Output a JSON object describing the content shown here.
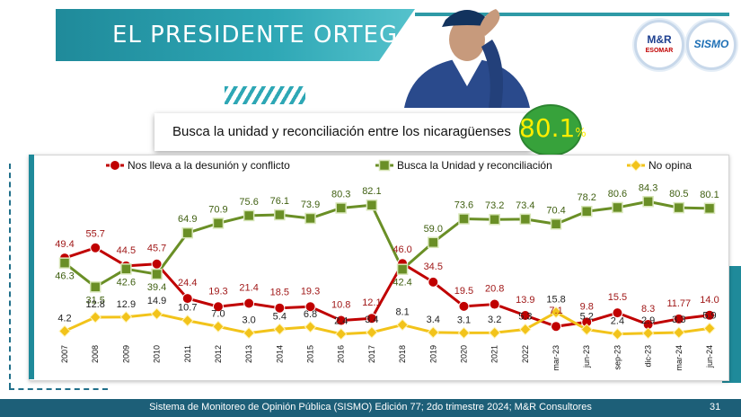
{
  "slide": {
    "title": "EL PRESIDENTE ORTEGA…",
    "subtitle": "Busca la unidad y reconciliación entre los nicaragüenses",
    "highlight_value": "80.1",
    "highlight_unit": "%",
    "footer": "Sistema de Monitoreo de Opinión Pública (SISMO) Edición 77; 2do trimestre 2024; M&R Consultores",
    "page_number": "31",
    "logo_left": {
      "line1": "M&R",
      "line2": "ESOMAR"
    },
    "logo_right": {
      "line1": "SISMO"
    }
  },
  "colors": {
    "teal": "#2ea7b5",
    "red": "#c00000",
    "green": "#6a8f26",
    "yellow": "#f2c31a"
  },
  "chart_data": {
    "type": "line",
    "categories": [
      "2007",
      "2008",
      "2009",
      "2010",
      "2011",
      "2012",
      "2013",
      "2014",
      "2015",
      "2016",
      "2017",
      "2018",
      "2019",
      "2020",
      "2021",
      "2022",
      "mar-23",
      "jun-23",
      "sep-23",
      "dic-23",
      "mar-24",
      "jun-24"
    ],
    "ylim": [
      0,
      100
    ],
    "grid": false,
    "legend": "top",
    "series": [
      {
        "name": "Nos lleva a la desunión y conflicto",
        "color": "#c00000",
        "marker": "circle",
        "values": [
          49.4,
          55.7,
          44.5,
          45.7,
          24.4,
          19.3,
          21.4,
          18.5,
          19.3,
          10.8,
          12.1,
          46.0,
          34.5,
          19.5,
          20.8,
          13.9,
          7.1,
          9.8,
          15.5,
          8.3,
          11.77,
          14.0
        ],
        "labels": [
          "49.4",
          "55.7",
          "44.5",
          "45.7",
          "24.4",
          "19.3",
          "21.4",
          "18.5",
          "19.3",
          "10.8",
          "12.1",
          "46.0",
          "34.5",
          "19.5",
          "20.8",
          "13.9",
          "7.1",
          "9.8",
          "15.5",
          "8.3",
          "11.77",
          "14.0"
        ]
      },
      {
        "name": "Busca la Unidad y reconciliación",
        "color": "#6a8f26",
        "marker": "square",
        "values": [
          46.3,
          31.5,
          42.6,
          39.4,
          64.9,
          70.9,
          75.6,
          76.1,
          73.9,
          80.3,
          82.1,
          42.4,
          59.0,
          73.6,
          73.2,
          73.4,
          70.4,
          78.2,
          80.6,
          84.3,
          80.5,
          80.1
        ],
        "labels": [
          "46.3",
          "31.5",
          "42.6",
          "39.4",
          "64.9",
          "70.9",
          "75.6",
          "76.1",
          "73.9",
          "80.3",
          "82.1",
          "42.4",
          "59.0",
          "73.6",
          "73.2",
          "73.4",
          "70.4",
          "78.2",
          "80.6",
          "84.3",
          "80.5",
          "80.1"
        ]
      },
      {
        "name": "No opina",
        "color": "#f2c31a",
        "marker": "diamond",
        "values": [
          4.2,
          12.8,
          12.9,
          14.9,
          10.7,
          7.0,
          3.0,
          5.4,
          6.8,
          2.4,
          3.4,
          8.1,
          3.4,
          3.1,
          3.2,
          5.3,
          15.8,
          5.2,
          2.4,
          2.9,
          3.3,
          5.9
        ],
        "labels": [
          "4.2",
          "12.8",
          "12.9",
          "14.9",
          "10.7",
          "7.0",
          "3.0",
          "5.4",
          "6.8",
          "2.4",
          "3.4",
          "8.1",
          "3.4",
          "3.1",
          "3.2",
          "5.3",
          "15.8",
          "5.2",
          "2.4",
          "2.9",
          "3.3",
          "5.9"
        ]
      }
    ]
  }
}
